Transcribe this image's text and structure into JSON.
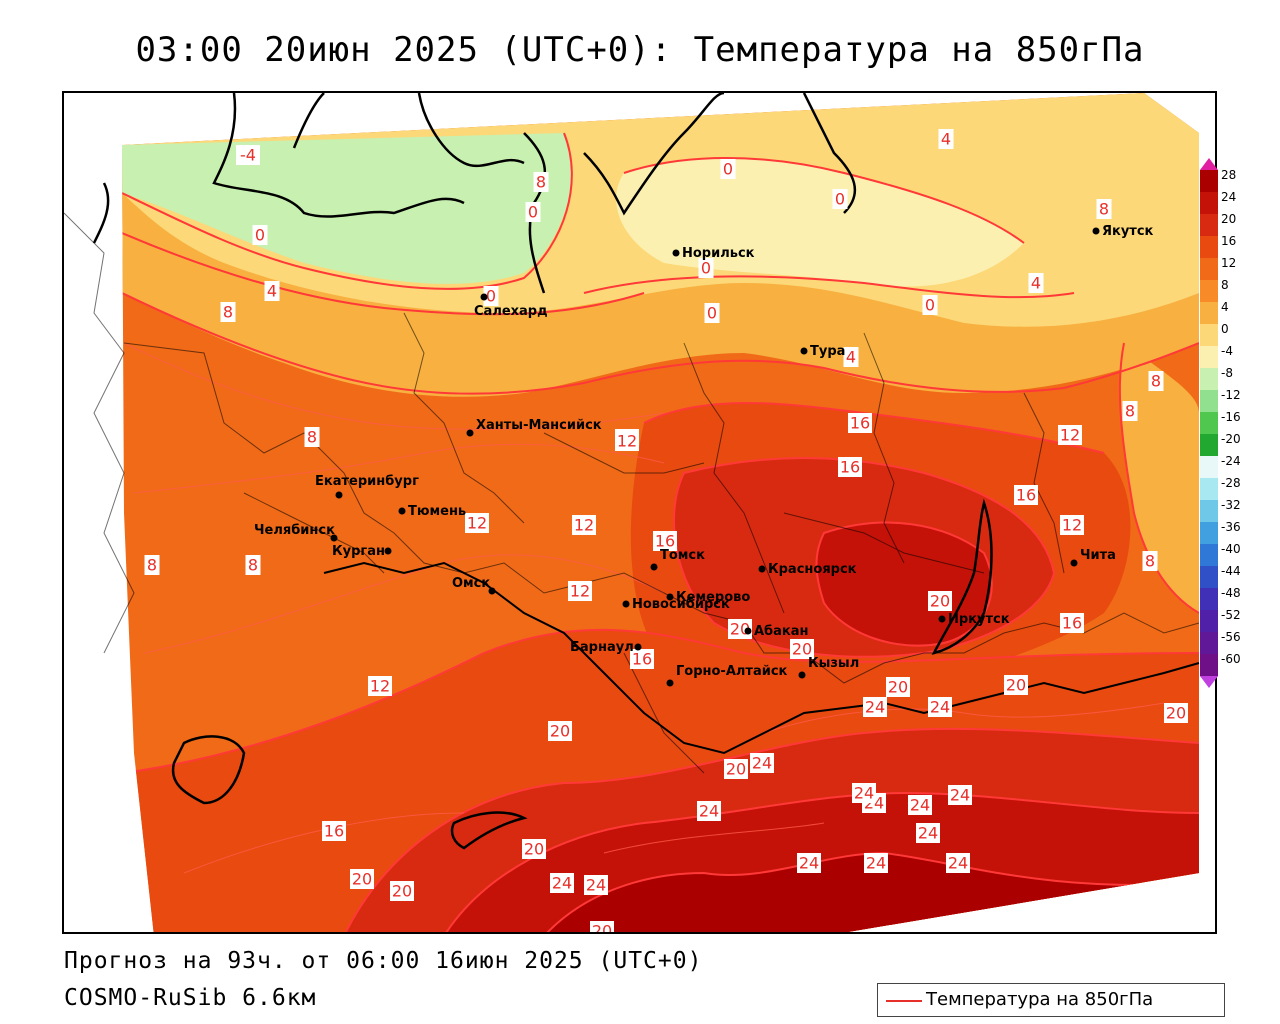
{
  "title": "03:00 20июн 2025 (UTC+0): Температура на 850гПа",
  "footer": {
    "forecast": "Прогноз на 93ч. от 06:00 16июн 2025 (UTC+0)",
    "model": "COSMO-RuSib 6.6км"
  },
  "legend_key": {
    "label": "Температура на 850гПа",
    "color": "#e8302a"
  },
  "colorbar": {
    "ticks": [
      "28",
      "24",
      "20",
      "16",
      "12",
      "8",
      "4",
      "0",
      "-4",
      "-8",
      "-12",
      "-16",
      "-20",
      "-24",
      "-28",
      "-32",
      "-36",
      "-40",
      "-44",
      "-48",
      "-52",
      "-56",
      "-60"
    ],
    "colors": [
      "#aa0000",
      "#c41208",
      "#d82a10",
      "#e84a10",
      "#f06a18",
      "#f88a28",
      "#f8b040",
      "#fcd878",
      "#fcf0b0",
      "#c8f0b0",
      "#90e090",
      "#50c850",
      "#20a830",
      "#e8f8f8",
      "#a8e8f0",
      "#70c8e8",
      "#40a0e0",
      "#3078d8",
      "#3050c8",
      "#4030b8",
      "#5020a8",
      "#601898",
      "#701088"
    ],
    "top_arrow_color": "#e020a0",
    "bottom_arrow_color": "#c040e0"
  },
  "cities": [
    {
      "name": "Норильск"
    },
    {
      "name": "Якутск"
    },
    {
      "name": "Салехард"
    },
    {
      "name": "Тура"
    },
    {
      "name": "Ханты-Мансийск"
    },
    {
      "name": "Екатеринбург"
    },
    {
      "name": "Тюмень"
    },
    {
      "name": "Челябинск"
    },
    {
      "name": "Курган"
    },
    {
      "name": "Омск"
    },
    {
      "name": "Новосибирск"
    },
    {
      "name": "Томск"
    },
    {
      "name": "Кемерово"
    },
    {
      "name": "Красноярск"
    },
    {
      "name": "Абакан"
    },
    {
      "name": "Барнаул"
    },
    {
      "name": "Горно-Алтайск"
    },
    {
      "name": "Кызыл"
    },
    {
      "name": "Иркутск"
    },
    {
      "name": "Чита"
    }
  ],
  "contour_labels": [
    "-4",
    "8",
    "0",
    "4",
    "0",
    "8",
    "0",
    "0",
    "0",
    "4",
    "4",
    "0",
    "0",
    "0",
    "4",
    "8",
    "8",
    "12",
    "8",
    "8",
    "8",
    "8",
    "12",
    "12",
    "12",
    "16",
    "16",
    "16",
    "16",
    "12",
    "16",
    "12",
    "8",
    "12",
    "20",
    "20",
    "20",
    "12",
    "16",
    "20",
    "20",
    "24",
    "20",
    "24",
    "20",
    "20",
    "24",
    "20",
    "24",
    "24",
    "24",
    "24",
    "24",
    "16",
    "20",
    "20",
    "24",
    "24",
    "24",
    "24",
    "24",
    "24",
    "20"
  ]
}
